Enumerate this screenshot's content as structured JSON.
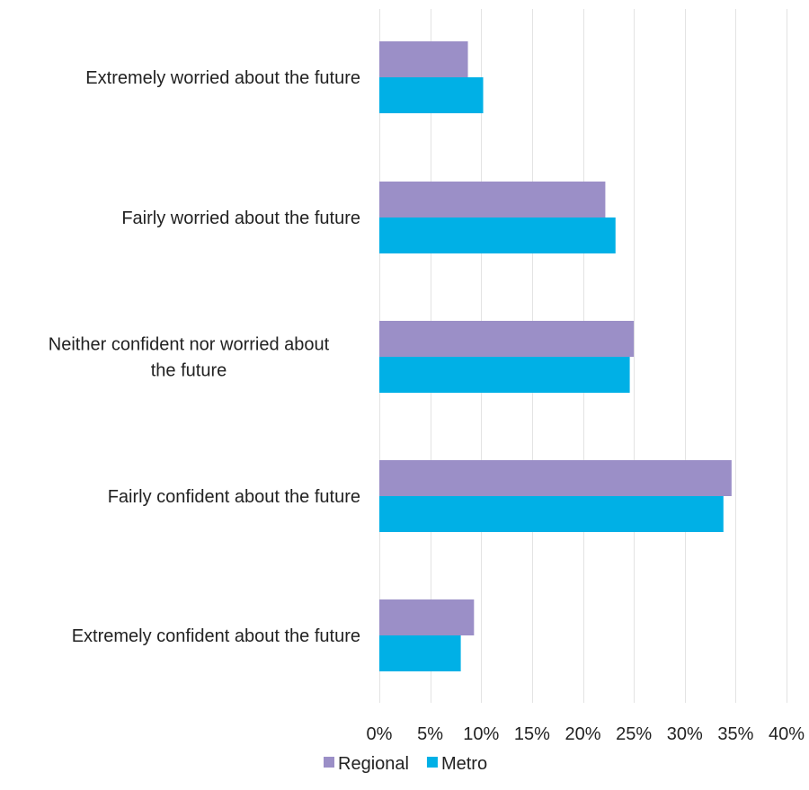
{
  "chart_data": {
    "type": "bar",
    "orientation": "horizontal",
    "categories": [
      "Extremely worried about the future",
      "Fairly worried about the future",
      "Neither confident nor worried about the future",
      "Fairly confident about the future",
      "Extremely confident about the future"
    ],
    "category_label_lines": [
      [
        "Extremely worried about the future"
      ],
      [
        "Fairly worried about the future"
      ],
      [
        "Neither confident nor worried about",
        "the future"
      ],
      [
        "Fairly confident about the future"
      ],
      [
        "Extremely confident about the future"
      ]
    ],
    "series": [
      {
        "name": "Regional",
        "color": "#9b8fc7",
        "values": [
          8.7,
          22.2,
          25.0,
          34.6,
          9.3
        ]
      },
      {
        "name": "Metro",
        "color": "#00b0e6",
        "values": [
          10.2,
          23.2,
          24.6,
          33.8,
          8.0
        ]
      }
    ],
    "xlim": [
      0,
      40
    ],
    "xticks": [
      0,
      5,
      10,
      15,
      20,
      25,
      30,
      35,
      40
    ],
    "xtick_labels": [
      "0%",
      "5%",
      "10%",
      "15%",
      "20%",
      "25%",
      "30%",
      "35%",
      "40%"
    ],
    "grid": true,
    "legend_position": "bottom"
  }
}
